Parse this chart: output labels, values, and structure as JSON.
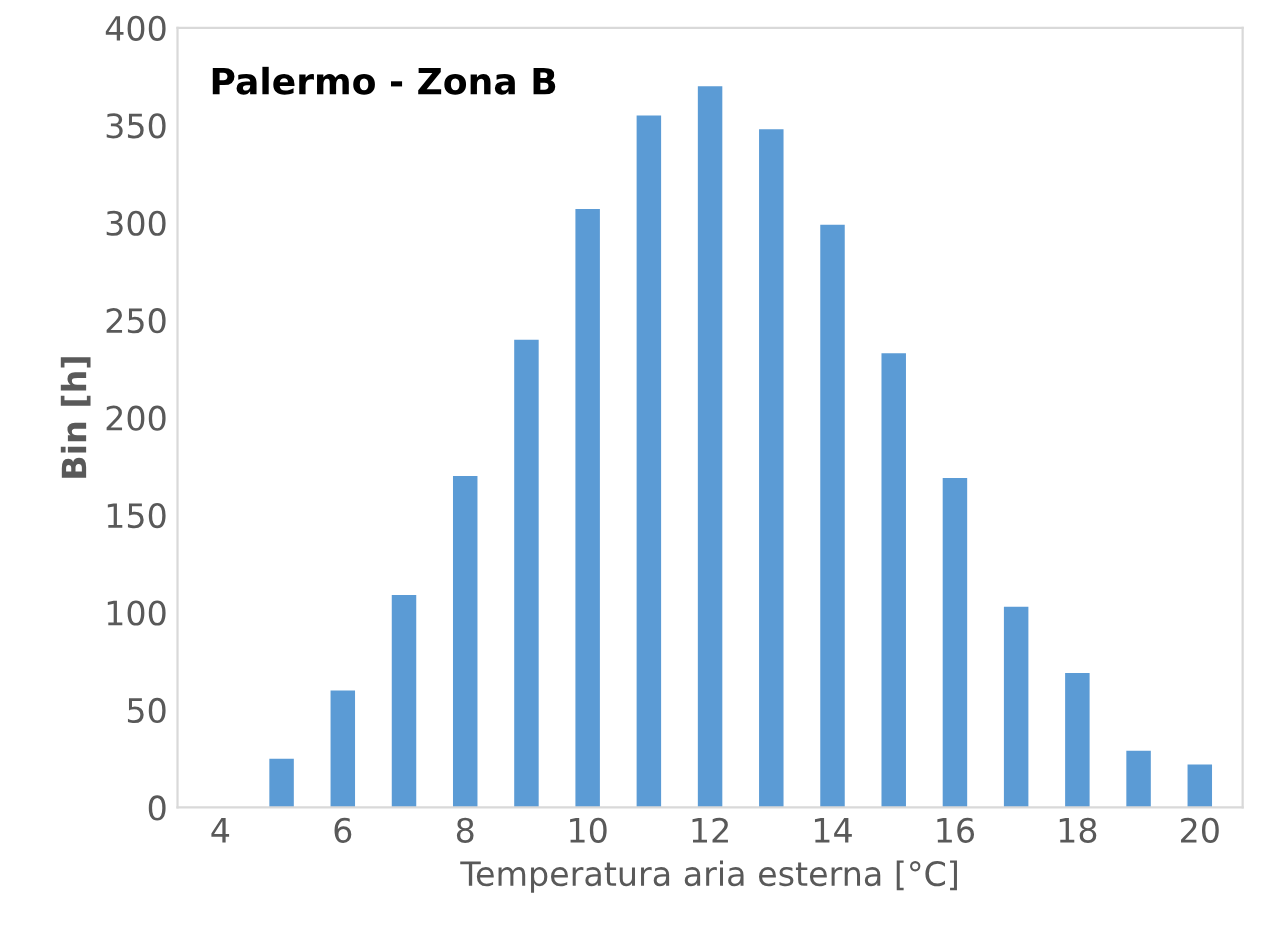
{
  "chart_data": {
    "type": "bar",
    "title": "Palermo - Zona B",
    "xlabel": "Temperatura aria esterna [°C]",
    "ylabel": "Bin [h]",
    "categories": [
      "4",
      null,
      "6",
      null,
      "8",
      null,
      "10",
      null,
      "12",
      null,
      "14",
      null,
      "16",
      null,
      "18",
      null,
      "20"
    ],
    "values": [
      0,
      25,
      60,
      109,
      170,
      240,
      307,
      355,
      370,
      348,
      299,
      233,
      169,
      103,
      69,
      29,
      22
    ],
    "color": "#5b9bd5",
    "ylim": [
      0,
      400
    ],
    "yticks": [
      0,
      50,
      100,
      150,
      200,
      250,
      300,
      350,
      400
    ],
    "grid": false
  }
}
